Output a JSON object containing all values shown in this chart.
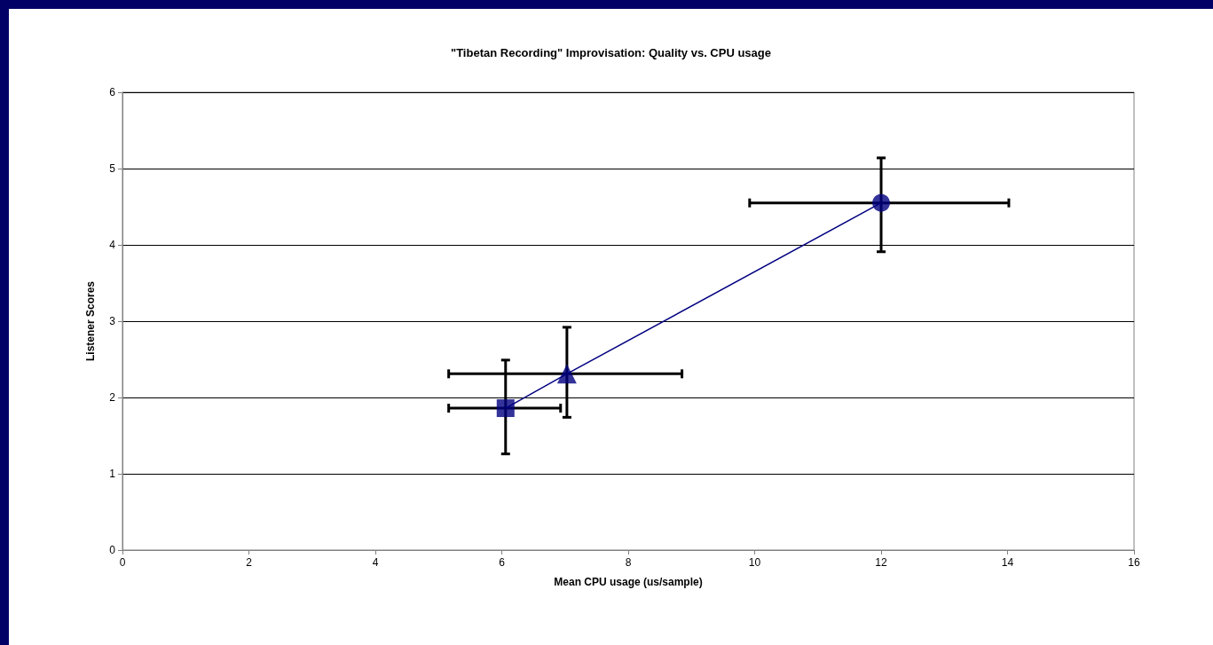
{
  "chart_data": {
    "type": "scatter",
    "title": "\"Tibetan Recording\" Improvisation: Quality vs. CPU usage",
    "xlabel": "Mean CPU usage (us/sample)",
    "ylabel": "Listener Scores",
    "xlim": [
      0,
      16
    ],
    "xticks": [
      0,
      2,
      4,
      6,
      8,
      10,
      12,
      14,
      16
    ],
    "ylim": [
      0,
      6
    ],
    "yticks": [
      0,
      1,
      2,
      3,
      4,
      5,
      6
    ],
    "grid": "y",
    "series": [
      {
        "type": "line",
        "color": "#000080",
        "marker": "none",
        "line_style": "solid",
        "x": [
          6.06,
          7.03,
          12.0
        ],
        "values": [
          1.86,
          2.31,
          4.55
        ]
      },
      {
        "color": "#000080",
        "marker": "square",
        "x": [
          6.06
        ],
        "values": [
          1.86
        ],
        "errors": [
          [
            1.26,
            2.49
          ]
        ],
        "xerrors": [
          [
            5.16,
            6.93
          ]
        ]
      },
      {
        "color": "#000080",
        "marker": "triangle",
        "x": [
          7.03
        ],
        "values": [
          2.31
        ],
        "errors": [
          [
            1.74,
            2.92
          ]
        ],
        "xerrors": [
          [
            5.16,
            8.85
          ]
        ]
      },
      {
        "color": "#000080",
        "marker": "circle",
        "x": [
          12.0
        ],
        "values": [
          4.55
        ],
        "errors": [
          [
            3.91,
            5.14
          ]
        ],
        "xerrors": [
          [
            9.92,
            14.02
          ]
        ]
      }
    ]
  }
}
